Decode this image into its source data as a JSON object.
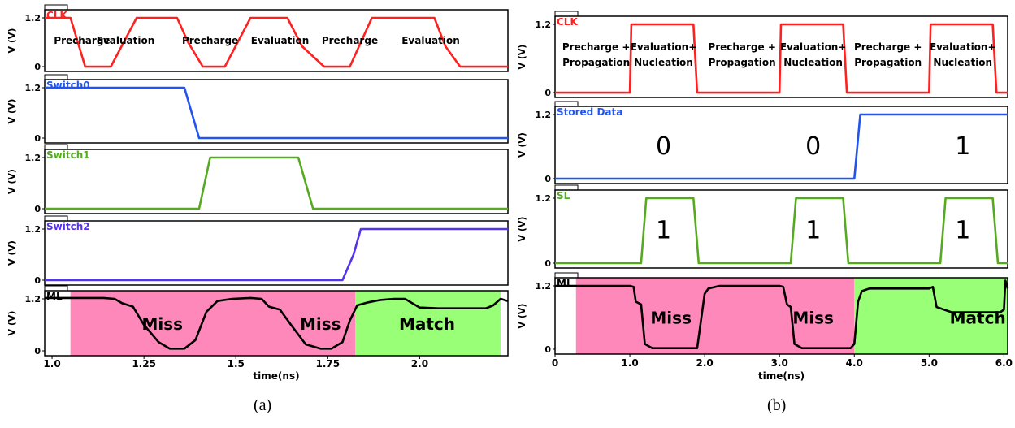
{
  "figure": {
    "captions": [
      "(a)",
      "(b)"
    ]
  },
  "chart_data": [
    {
      "id": "a",
      "type": "line",
      "xlabel": "time(ns)",
      "xlim": [
        0.98,
        2.24
      ],
      "xticks": [
        1.0,
        1.25,
        1.5,
        1.75,
        2.0
      ],
      "xtick_labels": [
        "1.0",
        "1.25",
        "1.5",
        "1.75",
        "2.0"
      ],
      "ylabel": "V (V)",
      "panels": [
        {
          "name": "CLK",
          "color": "#ff2020",
          "ylim": [
            0,
            1.2
          ],
          "yticks": [
            "0",
            "1.2"
          ],
          "x": [
            0.98,
            1.05,
            1.09,
            1.16,
            1.23,
            1.28,
            1.34,
            1.37,
            1.41,
            1.47,
            1.54,
            1.57,
            1.64,
            1.68,
            1.74,
            1.77,
            1.81,
            1.87,
            1.94,
            1.98,
            2.04,
            2.07,
            2.11,
            2.2,
            2.24
          ],
          "y": [
            1.2,
            1.2,
            0,
            0,
            1.2,
            1.2,
            1.2,
            0.6,
            0,
            0,
            1.2,
            1.2,
            1.2,
            0.5,
            0,
            0,
            0,
            1.2,
            1.2,
            1.2,
            1.2,
            0.5,
            0,
            0,
            0
          ],
          "annotations": [
            "Precharge",
            "Evaluation",
            "Precharge",
            "Evaluation",
            "Precharge",
            "Evaluation"
          ],
          "annotation_x": [
            1.005,
            1.2,
            1.43,
            1.62,
            1.81,
            2.03
          ]
        },
        {
          "name": "Switch0",
          "color": "#2255ee",
          "ylim": [
            0,
            1.2
          ],
          "yticks": [
            "0",
            "1.2"
          ],
          "x": [
            0.98,
            1.33,
            1.36,
            1.4,
            2.24
          ],
          "y": [
            1.2,
            1.2,
            1.2,
            0,
            0
          ]
        },
        {
          "name": "Switch1",
          "color": "#55aa22",
          "ylim": [
            0,
            1.2
          ],
          "yticks": [
            "0",
            "1.2"
          ],
          "x": [
            0.98,
            1.4,
            1.43,
            1.62,
            1.67,
            1.71,
            2.24
          ],
          "y": [
            0,
            0,
            1.2,
            1.2,
            1.2,
            0,
            0
          ]
        },
        {
          "name": "Switch2",
          "color": "#5533ee",
          "ylim": [
            0,
            1.2
          ],
          "yticks": [
            "0",
            "1.2"
          ],
          "x": [
            0.98,
            1.79,
            1.82,
            1.84,
            2.24
          ],
          "y": [
            0,
            0,
            0.6,
            1.2,
            1.2
          ]
        },
        {
          "name": "ML",
          "color": "#000000",
          "ylim": [
            0,
            1.2
          ],
          "yticks": [
            "0",
            "1.2"
          ],
          "x": [
            0.98,
            1.1,
            1.14,
            1.17,
            1.19,
            1.22,
            1.25,
            1.29,
            1.32,
            1.36,
            1.39,
            1.42,
            1.45,
            1.49,
            1.54,
            1.57,
            1.59,
            1.62,
            1.65,
            1.69,
            1.73,
            1.76,
            1.79,
            1.81,
            1.83,
            1.86,
            1.89,
            1.93,
            1.96,
            2.0,
            2.05,
            2.09,
            2.13,
            2.18,
            2.2,
            2.22,
            2.24
          ],
          "y": [
            1.22,
            1.22,
            1.22,
            1.2,
            1.1,
            1.02,
            0.6,
            0.2,
            0.05,
            0.05,
            0.25,
            0.9,
            1.15,
            1.2,
            1.22,
            1.2,
            1.02,
            0.95,
            0.6,
            0.15,
            0.05,
            0.05,
            0.2,
            0.7,
            1.05,
            1.12,
            1.17,
            1.2,
            1.2,
            1.0,
            0.98,
            0.98,
            0.98,
            0.98,
            1.05,
            1.2,
            1.15
          ],
          "regions": [
            {
              "label": "Miss",
              "x0": 1.05,
              "x1": 1.825,
              "color": "#ff88bb"
            },
            {
              "label": "Match",
              "x0": 1.825,
              "x1": 2.22,
              "color": "#99ff77"
            }
          ],
          "region_labels": [
            "Miss",
            "Miss",
            "Match"
          ],
          "region_label_x": [
            1.3,
            1.73,
            2.02
          ]
        }
      ]
    },
    {
      "id": "b",
      "type": "line",
      "xlabel": "time(ns)",
      "xlim": [
        0,
        6.05
      ],
      "xticks": [
        0,
        1.0,
        2.0,
        3.0,
        4.0,
        5.0,
        6.0
      ],
      "xtick_labels": [
        "0",
        "1.0",
        "2.0",
        "3.0",
        "4.0",
        "5.0",
        "6.0"
      ],
      "ylabel": "V (V)",
      "panels": [
        {
          "name": "CLK",
          "color": "#ff2020",
          "ylim": [
            0,
            1.2
          ],
          "yticks": [
            "0",
            "1.2"
          ],
          "x": [
            0,
            1.0,
            1.02,
            1.85,
            1.9,
            3.0,
            3.02,
            3.85,
            3.9,
            5.0,
            5.02,
            5.85,
            5.9,
            6.05
          ],
          "y": [
            0,
            0,
            1.2,
            1.2,
            0,
            0,
            1.2,
            1.2,
            0,
            0,
            1.2,
            1.2,
            0,
            0
          ],
          "annotations": [
            "Precharge +",
            "Propagation",
            "Evaluation+",
            "Nucleation",
            "Precharge +",
            "Propagation",
            "Evaluation+",
            "Nucleation",
            "Precharge +",
            "Propagation",
            "Evaluation+",
            "Nucleation"
          ]
        },
        {
          "name": "Stored Data",
          "color": "#2255ee",
          "ylim": [
            0,
            1.2
          ],
          "yticks": [
            "0",
            "1.2"
          ],
          "x": [
            0,
            4.0,
            4.08,
            6.05
          ],
          "y": [
            0,
            0,
            1.2,
            1.2
          ],
          "annotations": [
            "0",
            "0",
            "1"
          ],
          "annotation_x": [
            1.45,
            3.45,
            5.45
          ]
        },
        {
          "name": "SL",
          "color": "#55aa22",
          "ylim": [
            0,
            1.2
          ],
          "yticks": [
            "0",
            "1.2"
          ],
          "x": [
            0,
            1.15,
            1.22,
            1.85,
            1.92,
            3.15,
            3.22,
            3.85,
            3.92,
            5.15,
            5.22,
            5.85,
            5.92,
            6.05
          ],
          "y": [
            0,
            0,
            1.2,
            1.2,
            0,
            0,
            1.2,
            1.2,
            0,
            0,
            1.2,
            1.2,
            0,
            0
          ],
          "annotations": [
            "1",
            "1",
            "1"
          ],
          "annotation_x": [
            1.45,
            3.45,
            5.45
          ]
        },
        {
          "name": "ML",
          "color": "#000000",
          "ylim": [
            0,
            1.2
          ],
          "yticks": [
            "0",
            "1.2"
          ],
          "x": [
            0,
            1.0,
            1.05,
            1.08,
            1.15,
            1.2,
            1.3,
            1.85,
            1.9,
            2.0,
            2.05,
            2.2,
            3.0,
            3.05,
            3.1,
            3.15,
            3.2,
            3.3,
            3.95,
            4.0,
            4.05,
            4.1,
            4.2,
            5.0,
            5.05,
            5.1,
            5.2,
            5.3,
            5.95,
            6.0,
            6.02,
            6.05
          ],
          "y": [
            1.2,
            1.2,
            1.18,
            0.9,
            0.85,
            0.1,
            0.02,
            0.02,
            0.02,
            1.05,
            1.15,
            1.2,
            1.2,
            1.18,
            0.85,
            0.8,
            0.1,
            0.02,
            0.02,
            0.1,
            0.9,
            1.1,
            1.15,
            1.15,
            1.18,
            0.8,
            0.75,
            0.7,
            0.7,
            0.75,
            1.3,
            1.15
          ],
          "regions": [
            {
              "label": "Miss",
              "x0": 0.28,
              "x1": 4.0,
              "color": "#ff88bb"
            },
            {
              "label": "Match",
              "x0": 4.0,
              "x1": 6.05,
              "color": "#99ff77"
            }
          ],
          "region_labels": [
            "Miss",
            "Miss",
            "Match"
          ],
          "region_label_x": [
            1.55,
            3.45,
            5.65
          ]
        }
      ]
    }
  ]
}
